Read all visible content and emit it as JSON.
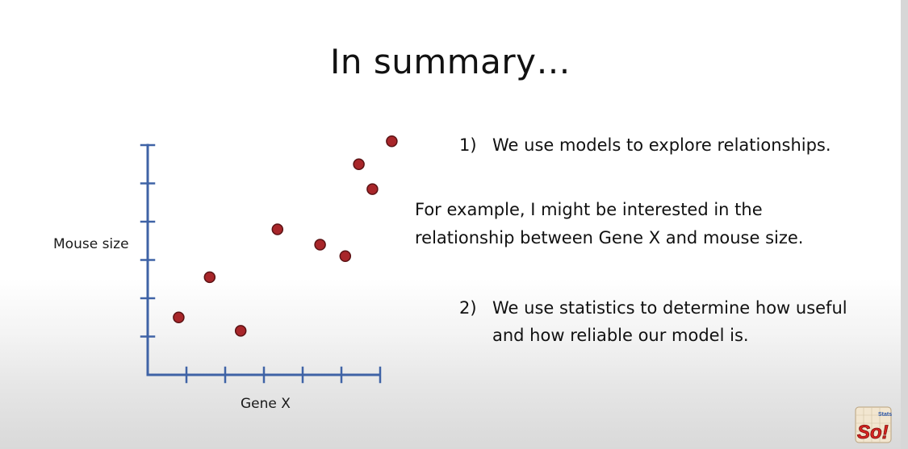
{
  "slide": {
    "title": "In summary…",
    "point1_number": "1)",
    "point1_text": "We use models to explore relationships.",
    "example_line1": "For example, I might be interested in the",
    "example_line2": "relationship between Gene X and mouse size.",
    "point2_number": "2)",
    "point2_line1": "We use statistics to determine how useful",
    "point2_line2": "and how reliable our model is."
  },
  "chart_data": {
    "type": "scatter",
    "xlabel": "Gene X",
    "ylabel": "Mouse size",
    "xlim": [
      0,
      6
    ],
    "ylim": [
      0,
      6
    ],
    "grid": false,
    "point_color": "#a8262a",
    "axis_color": "#3f63a6",
    "points": [
      {
        "x": 0.8,
        "y": 1.5
      },
      {
        "x": 1.6,
        "y": 2.55
      },
      {
        "x": 2.4,
        "y": 1.15
      },
      {
        "x": 3.35,
        "y": 3.8
      },
      {
        "x": 4.45,
        "y": 3.4
      },
      {
        "x": 5.1,
        "y": 3.1
      },
      {
        "x": 5.45,
        "y": 5.5
      },
      {
        "x": 5.8,
        "y": 4.85
      },
      {
        "x": 6.3,
        "y": 6.1
      }
    ]
  },
  "logo": {
    "text": "So!",
    "small_text": "Stats"
  }
}
